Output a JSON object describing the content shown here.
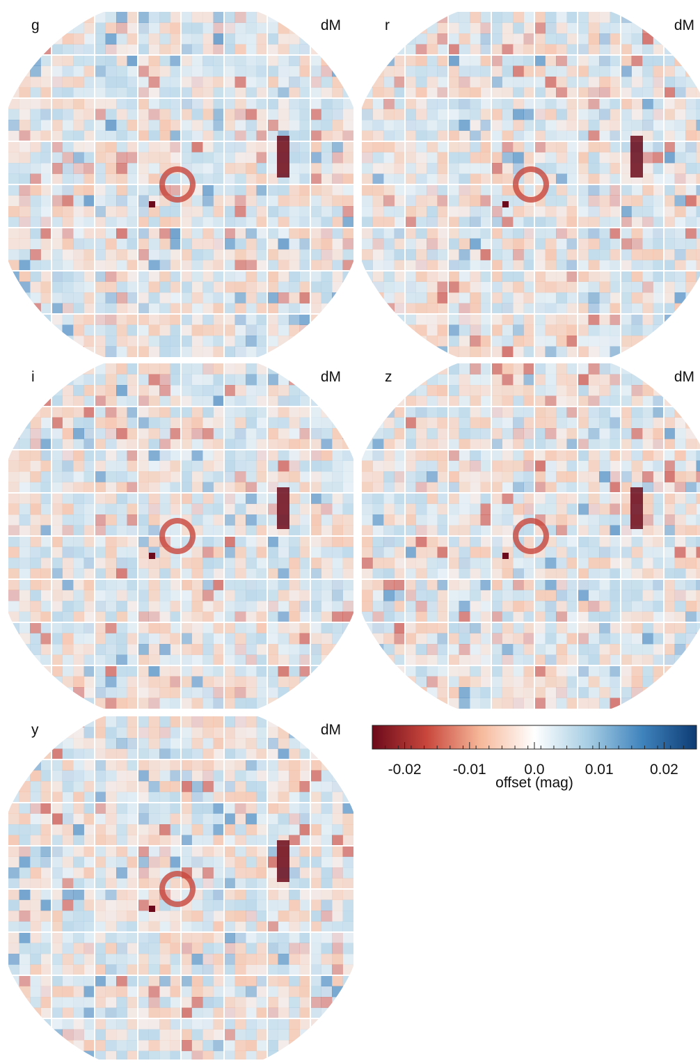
{
  "panels": [
    {
      "band": "g",
      "label": "dM"
    },
    {
      "band": "r",
      "label": "dM"
    },
    {
      "band": "i",
      "label": "dM"
    },
    {
      "band": "z",
      "label": "dM"
    },
    {
      "band": "y",
      "label": "dM"
    }
  ],
  "colorbar": {
    "label": "offset (mag)",
    "lim": [
      -0.025,
      0.025
    ],
    "ticks": [
      -0.02,
      -0.01,
      {
        "value": 0,
        "label": "0.0"
      },
      0.01,
      0.02
    ],
    "colors": [
      "#6b0a1a",
      "#c8463c",
      "#f6b89a",
      "#ffffff",
      "#a6cde3",
      "#3f83bd",
      "#0d3b73"
    ]
  }
}
